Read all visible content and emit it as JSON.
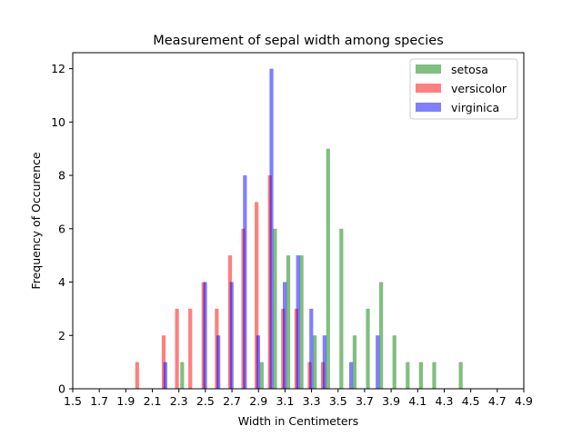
{
  "chart_data": {
    "type": "bar",
    "title": "Measurement of sepal width among species",
    "xlabel": "Width in Centimeters",
    "ylabel": "Frequency of Occurence",
    "xlim": [
      1.5,
      4.9
    ],
    "ylim": [
      0,
      12.6
    ],
    "xticks": [
      "1.5",
      "1.7",
      "1.9",
      "2.1",
      "2.3",
      "2.5",
      "2.7",
      "2.9",
      "3.1",
      "3.3",
      "3.5",
      "3.7",
      "3.9",
      "4.1",
      "4.3",
      "4.5",
      "4.7",
      "4.9"
    ],
    "yticks": [
      "0",
      "2",
      "4",
      "6",
      "8",
      "10",
      "12"
    ],
    "legend_position": "top-right",
    "bar_opacity": 0.5,
    "series": [
      {
        "name": "setosa",
        "color": "#008000",
        "points": [
          {
            "x": 2.3,
            "y": 1
          },
          {
            "x": 2.9,
            "y": 1
          },
          {
            "x": 3.0,
            "y": 6
          },
          {
            "x": 3.1,
            "y": 5
          },
          {
            "x": 3.2,
            "y": 5
          },
          {
            "x": 3.3,
            "y": 2
          },
          {
            "x": 3.4,
            "y": 9
          },
          {
            "x": 3.5,
            "y": 6
          },
          {
            "x": 3.6,
            "y": 2
          },
          {
            "x": 3.7,
            "y": 3
          },
          {
            "x": 3.8,
            "y": 4
          },
          {
            "x": 3.9,
            "y": 2
          },
          {
            "x": 4.0,
            "y": 1
          },
          {
            "x": 4.1,
            "y": 1
          },
          {
            "x": 4.2,
            "y": 1
          },
          {
            "x": 4.4,
            "y": 1
          }
        ]
      },
      {
        "name": "versicolor",
        "color": "#ff0000",
        "points": [
          {
            "x": 2.0,
            "y": 1
          },
          {
            "x": 2.2,
            "y": 2
          },
          {
            "x": 2.3,
            "y": 3
          },
          {
            "x": 2.4,
            "y": 3
          },
          {
            "x": 2.5,
            "y": 4
          },
          {
            "x": 2.6,
            "y": 3
          },
          {
            "x": 2.7,
            "y": 5
          },
          {
            "x": 2.8,
            "y": 6
          },
          {
            "x": 2.9,
            "y": 7
          },
          {
            "x": 3.0,
            "y": 8
          },
          {
            "x": 3.1,
            "y": 3
          },
          {
            "x": 3.2,
            "y": 3
          },
          {
            "x": 3.3,
            "y": 1
          },
          {
            "x": 3.4,
            "y": 1
          }
        ]
      },
      {
        "name": "virginica",
        "color": "#0000ff",
        "points": [
          {
            "x": 2.2,
            "y": 1
          },
          {
            "x": 2.5,
            "y": 4
          },
          {
            "x": 2.6,
            "y": 2
          },
          {
            "x": 2.7,
            "y": 4
          },
          {
            "x": 2.8,
            "y": 8
          },
          {
            "x": 2.9,
            "y": 2
          },
          {
            "x": 3.0,
            "y": 12
          },
          {
            "x": 3.1,
            "y": 4
          },
          {
            "x": 3.2,
            "y": 5
          },
          {
            "x": 3.3,
            "y": 3
          },
          {
            "x": 3.4,
            "y": 2
          },
          {
            "x": 3.6,
            "y": 1
          },
          {
            "x": 3.8,
            "y": 2
          }
        ]
      }
    ]
  }
}
